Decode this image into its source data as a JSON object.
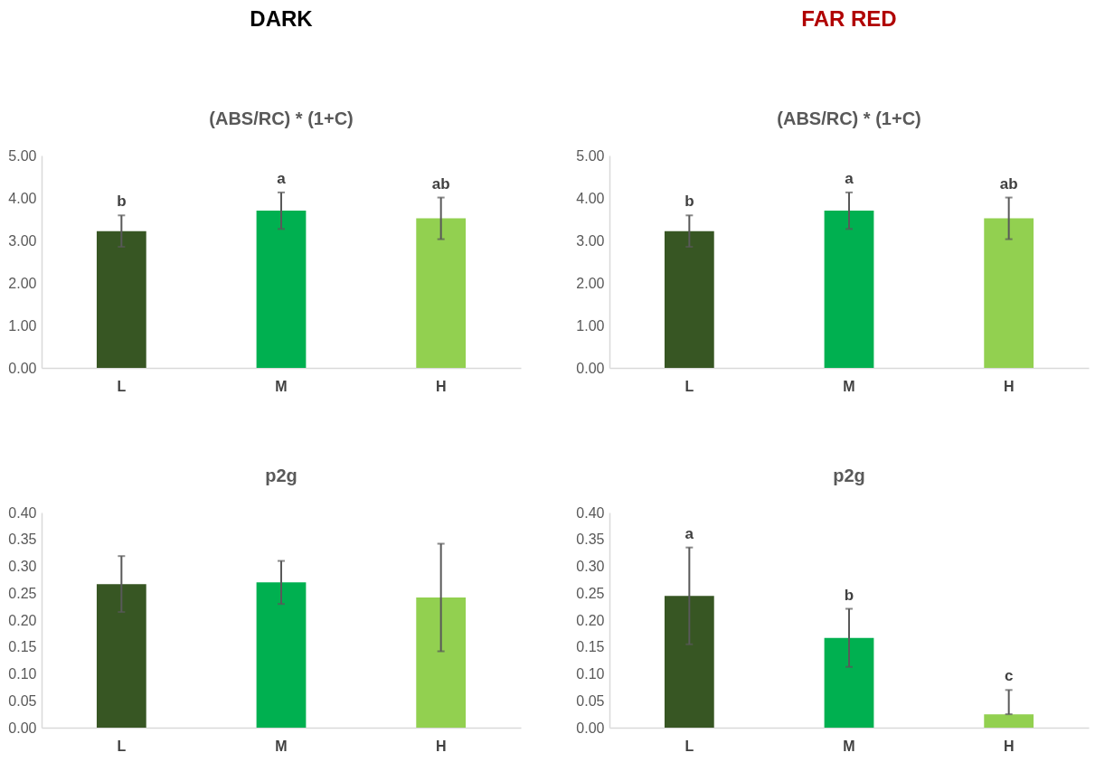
{
  "chart_data": [
    {
      "type": "bar",
      "title": "DARK",
      "subtitle": "(ABS/RC) * (1+C)",
      "categories": [
        "L",
        "M",
        "H"
      ],
      "values": [
        3.22,
        3.7,
        3.52
      ],
      "errors": [
        0.37,
        0.43,
        0.49
      ],
      "colors": [
        "#375623",
        "#00b050",
        "#92d050"
      ],
      "ylim": [
        0,
        5
      ],
      "yticks": [
        {
          "value": 0,
          "label": "0.00"
        },
        {
          "value": 1,
          "label": "1.00"
        },
        {
          "value": 2,
          "label": "2.00"
        },
        {
          "value": 3,
          "label": "3.00"
        },
        {
          "value": 4,
          "label": "4.00"
        },
        {
          "value": 5,
          "label": "5.00"
        }
      ],
      "grid": false,
      "annotations": [
        "b",
        "a",
        "ab"
      ]
    },
    {
      "type": "bar",
      "title": "FAR RED",
      "subtitle": "(ABS/RC) * (1+C)",
      "categories": [
        "L",
        "M",
        "H"
      ],
      "values": [
        3.22,
        3.7,
        3.52
      ],
      "errors": [
        0.37,
        0.43,
        0.49
      ],
      "colors": [
        "#375623",
        "#00b050",
        "#92d050"
      ],
      "ylim": [
        0,
        5
      ],
      "yticks": [
        {
          "value": 0,
          "label": "0.00"
        },
        {
          "value": 1,
          "label": "1.00"
        },
        {
          "value": 2,
          "label": "2.00"
        },
        {
          "value": 3,
          "label": "3.00"
        },
        {
          "value": 4,
          "label": "4.00"
        },
        {
          "value": 5,
          "label": "5.00"
        }
      ],
      "grid": false,
      "annotations": [
        "b",
        "a",
        "ab"
      ]
    },
    {
      "type": "bar",
      "title": "p2g",
      "categories": [
        "L",
        "M",
        "H"
      ],
      "values": [
        0.267,
        0.27,
        0.242
      ],
      "errors": [
        0.052,
        0.04,
        0.1
      ],
      "colors": [
        "#375623",
        "#00b050",
        "#92d050"
      ],
      "ylim": [
        0,
        0.4
      ],
      "yticks": [
        {
          "value": 0,
          "label": "0.00"
        },
        {
          "value": 0.05,
          "label": "0.05"
        },
        {
          "value": 0.1,
          "label": "0.10"
        },
        {
          "value": 0.15,
          "label": "0.15"
        },
        {
          "value": 0.2,
          "label": "0.20"
        },
        {
          "value": 0.25,
          "label": "0.25"
        },
        {
          "value": 0.3,
          "label": "0.30"
        },
        {
          "value": 0.35,
          "label": "0.35"
        },
        {
          "value": 0.4,
          "label": "0.40"
        }
      ],
      "grid": false
    },
    {
      "type": "bar",
      "title": "p2g",
      "categories": [
        "L",
        "M",
        "H"
      ],
      "values": [
        0.245,
        0.167,
        0.025
      ],
      "errors": [
        0.09,
        0.054,
        [
          0.025,
          0.07
        ]
      ],
      "colors": [
        "#375623",
        "#00b050",
        "#92d050"
      ],
      "ylim": [
        0,
        0.4
      ],
      "yticks": [
        {
          "value": 0,
          "label": "0.00"
        },
        {
          "value": 0.05,
          "label": "0.05"
        },
        {
          "value": 0.1,
          "label": "0.10"
        },
        {
          "value": 0.15,
          "label": "0.15"
        },
        {
          "value": 0.2,
          "label": "0.20"
        },
        {
          "value": 0.25,
          "label": "0.25"
        },
        {
          "value": 0.3,
          "label": "0.30"
        },
        {
          "value": 0.35,
          "label": "0.35"
        },
        {
          "value": 0.4,
          "label": "0.40"
        }
      ],
      "grid": false,
      "annotations": [
        "a",
        "b",
        "c"
      ]
    }
  ]
}
